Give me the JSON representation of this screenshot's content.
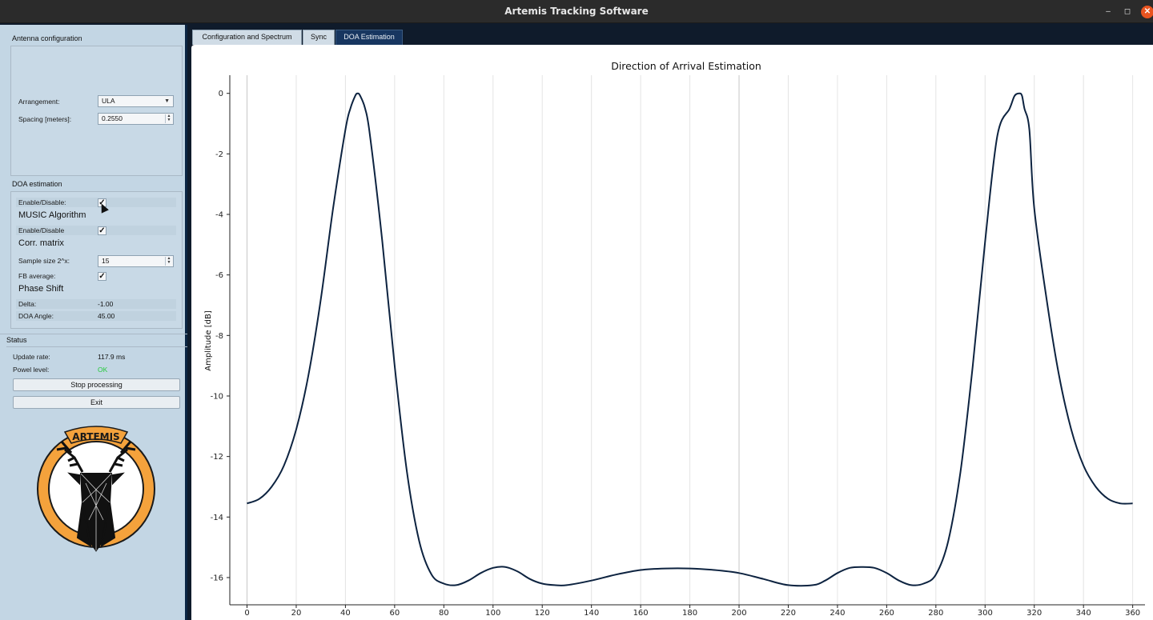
{
  "window": {
    "title": "Artemis Tracking Software",
    "minimize": "–",
    "maximize": "◻",
    "close": "✕"
  },
  "antenna": {
    "section_title": "Antenna configuration",
    "arrangement_label": "Arrangement:",
    "arrangement_value": "ULA",
    "spacing_label": "Spacing [meters]:",
    "spacing_value": "0.2550"
  },
  "doa": {
    "section_title": "DOA estimation",
    "music_enable_label": "Enable/Disable:",
    "music_title": "MUSIC Algorithm",
    "corr_enable_label": "Enable/Disable",
    "corr_title": "Corr. matrix",
    "sample_size_label": "Sample size 2^x:",
    "sample_size_value": "15",
    "fb_label": "FB average:",
    "phase_title": "Phase Shift",
    "delta_label": "Delta:",
    "delta_value": "-1.00",
    "doa_angle_label": "DOA Angle:",
    "doa_angle_value": "45.00"
  },
  "status": {
    "section_title": "Status",
    "update_rate_label": "Update rate:",
    "update_rate_value": "117.9 ms",
    "power_label": "Powel level:",
    "power_value": "OK",
    "stop_button": "Stop processing",
    "exit_button": "Exit"
  },
  "logo": {
    "text": "ARTEMIS"
  },
  "tabs": [
    {
      "label": "Configuration and Spectrum"
    },
    {
      "label": "Sync"
    },
    {
      "label": "DOA Estimation"
    }
  ],
  "colors": {
    "accent": "#173660",
    "curve": "#0d2340",
    "ok": "#26c93c",
    "logo_ring": "#f4a23c"
  },
  "chart_data": {
    "type": "line",
    "title": "Direction of Arrival Estimation",
    "xlabel": "",
    "ylabel": "Amplitude [dB]",
    "xlim": [
      -7,
      365
    ],
    "ylim": [
      -16.9,
      0.6
    ],
    "xticks": [
      0,
      20,
      40,
      60,
      80,
      100,
      120,
      140,
      160,
      180,
      200,
      220,
      240,
      260,
      280,
      300,
      320,
      340,
      360
    ],
    "yticks": [
      0,
      -2,
      -4,
      -6,
      -8,
      -10,
      -12,
      -14,
      -16
    ],
    "grid": "vertical",
    "series": [
      {
        "x": [
          0,
          5,
          10,
          15,
          20,
          25,
          30,
          35,
          40,
          42,
          44,
          45,
          46,
          48,
          50,
          55,
          60,
          65,
          70,
          75,
          80,
          85,
          90,
          95,
          100,
          105,
          110,
          115,
          120,
          125,
          130,
          140,
          150,
          160,
          170,
          180,
          190,
          200,
          210,
          220,
          230,
          235,
          240,
          245,
          250,
          255,
          260,
          265,
          270,
          275,
          280,
          285,
          290,
          295,
          300,
          305,
          310,
          312,
          314,
          315,
          316,
          318,
          320,
          325,
          330,
          335,
          340,
          345,
          350,
          355,
          360
        ],
        "y": [
          -13.55,
          -13.4,
          -13.0,
          -12.3,
          -11.1,
          -9.3,
          -6.8,
          -3.8,
          -1.2,
          -0.5,
          -0.08,
          0.0,
          -0.08,
          -0.5,
          -1.4,
          -4.9,
          -9.0,
          -12.5,
          -14.8,
          -15.9,
          -16.2,
          -16.25,
          -16.1,
          -15.85,
          -15.68,
          -15.65,
          -15.8,
          -16.05,
          -16.2,
          -16.25,
          -16.25,
          -16.1,
          -15.9,
          -15.75,
          -15.7,
          -15.7,
          -15.75,
          -15.85,
          -16.05,
          -16.25,
          -16.25,
          -16.1,
          -15.85,
          -15.68,
          -15.65,
          -15.68,
          -15.85,
          -16.1,
          -16.25,
          -16.2,
          -15.9,
          -14.8,
          -12.5,
          -9.0,
          -4.9,
          -1.4,
          -0.5,
          -0.08,
          0.0,
          -0.08,
          -0.5,
          -1.2,
          -3.8,
          -6.8,
          -9.3,
          -11.1,
          -12.3,
          -13.0,
          -13.4,
          -13.55,
          -13.55
        ]
      }
    ]
  }
}
